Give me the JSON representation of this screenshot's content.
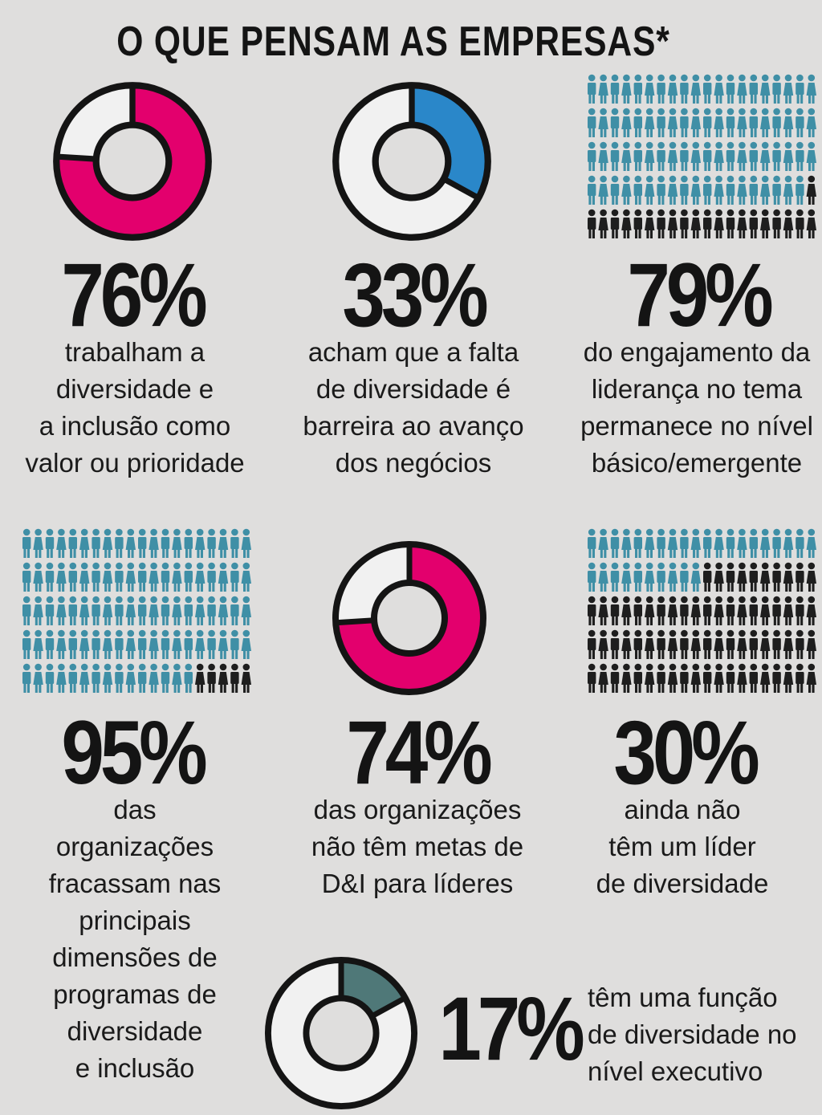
{
  "title": "O QUE PENSAM AS EMPRESAS*",
  "colors": {
    "pink": "#e3006d",
    "blue": "#2a87c9",
    "teal": "#4f7878",
    "person_blue": "#3f8fa6",
    "person_dark": "#1e1e1e",
    "donut_empty": "#f1f1f1",
    "outline": "#141414"
  },
  "chart_data": [
    {
      "type": "pie",
      "value": 76,
      "percent_label": "76%",
      "description": [
        "trabalham a",
        "diversidade e",
        "a inclusão como",
        "valor ou prioridade"
      ],
      "color": "pink"
    },
    {
      "type": "pie",
      "value": 33,
      "percent_label": "33%",
      "description": [
        "acham que a falta",
        "de diversidade é",
        "barreira ao avanço",
        "dos negócios"
      ],
      "color": "blue"
    },
    {
      "type": "pictogram",
      "value": 79,
      "percent_label": "79%",
      "description": [
        "do engajamento da",
        "liderança no tema",
        "permanece no nível",
        "básico/emergente"
      ],
      "icons_total": 100,
      "icons_highlighted": 79
    },
    {
      "type": "pictogram",
      "value": 95,
      "percent_label": "95%",
      "description": [
        "das",
        "organizações",
        "fracassam nas",
        "principais",
        "dimensões de",
        "programas de",
        "diversidade",
        "e inclusão"
      ],
      "icons_total": 100,
      "icons_highlighted": 95
    },
    {
      "type": "pie",
      "value": 74,
      "percent_label": "74%",
      "description": [
        "das organizações",
        "não têm metas de",
        "D&I para líderes"
      ],
      "color": "pink"
    },
    {
      "type": "pictogram",
      "value": 30,
      "percent_label": "30%",
      "description": [
        "ainda não",
        "têm um líder",
        "de diversidade"
      ],
      "icons_total": 100,
      "icons_highlighted": 30
    },
    {
      "type": "pie",
      "value": 17,
      "percent_label": "17%",
      "description": [
        "têm uma função",
        "de diversidade no",
        "nível executivo"
      ],
      "color": "teal"
    }
  ]
}
